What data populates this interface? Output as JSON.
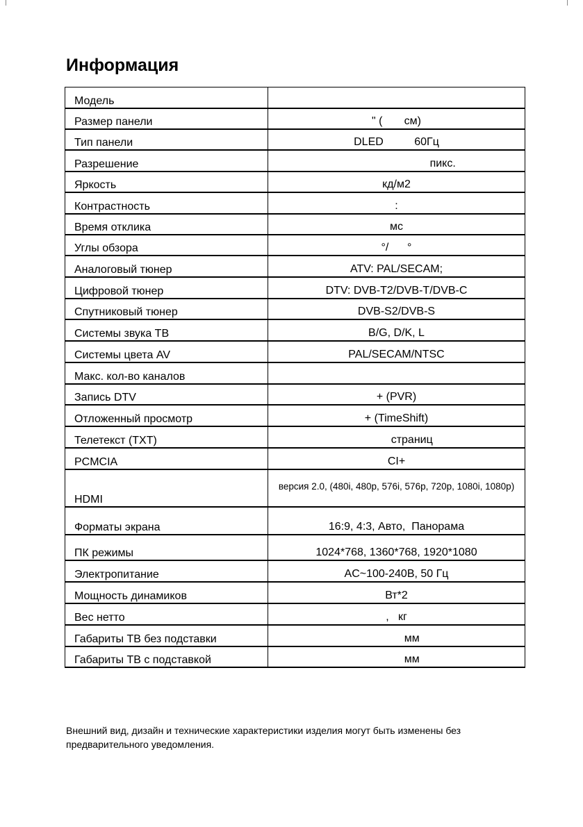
{
  "title": "Информация",
  "rows": [
    {
      "label": "Модель",
      "value": ""
    },
    {
      "label": "Размер панели",
      "value": "\" (       см)"
    },
    {
      "label": "Тип панели",
      "value": "DLED          60Гц"
    },
    {
      "label": "Разрешение",
      "value": "                              пикс."
    },
    {
      "label": "Яркость",
      "value": "кд/м2"
    },
    {
      "label": "Контрастность",
      "value": ":"
    },
    {
      "label": "Время отклика",
      "value": "мс"
    },
    {
      "label": "Углы обзора",
      "value": "°/      °"
    },
    {
      "label": "Аналоговый тюнер",
      "value": "ATV: PAL/SECAM;"
    },
    {
      "label": "Цифровой тюнер",
      "value": "DTV: DVB-T2/DVB-T/DVB-C"
    },
    {
      "label": "Спутниковый тюнер",
      "value": "DVB-S2/DVB-S"
    },
    {
      "label": "Системы звука ТВ",
      "value": "B/G, D/K, L"
    },
    {
      "label": "Системы цвета AV",
      "value": "PAL/SECAM/NTSC"
    },
    {
      "label": "Макс. кол-во каналов",
      "value": ""
    },
    {
      "label": "Запись DTV",
      "value": "+ (PVR)"
    },
    {
      "label": "Отложенный просмотр",
      "value": "+ (TimeShift)"
    },
    {
      "label": "Телетекст (TXT)",
      "value": "          страниц"
    },
    {
      "label": "PCMCIA",
      "value": "CI+"
    },
    {
      "label": "HDMI",
      "value": "версия 2.0, (480i, 480p, 576i, 576p, 720p, 1080i, 1080p)"
    },
    {
      "label": "Форматы экрана",
      "value": "16:9, 4:3, Авто,  Панорама"
    },
    {
      "label": "ПК режимы",
      "value": "1024*768, 1360*768, 1920*1080"
    },
    {
      "label": "Электропитание",
      "value": "AC~100-240В, 50 Гц"
    },
    {
      "label": "Мощность динамиков",
      "value": "Вт*2"
    },
    {
      "label": "Вес нетто",
      "value": ",   кг"
    },
    {
      "label": "Габариты ТВ без подставки",
      "value": "          мм"
    },
    {
      "label": "Габариты ТВ с подставкой",
      "value": "          мм"
    }
  ],
  "footer": "Внешний вид, дизайн и технические характеристики изделия могут быть изменены без предварительного уведомления."
}
